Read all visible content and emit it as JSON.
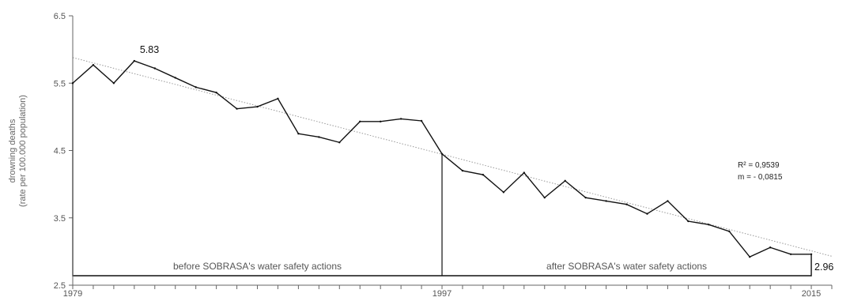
{
  "chart_data": {
    "type": "line",
    "title": "",
    "ylabel_lines": [
      "drowning deaths",
      "(rate per 100.000 population)"
    ],
    "xlabel": "",
    "ylim": [
      2.5,
      6.5
    ],
    "xlim": [
      1979,
      2016
    ],
    "y_ticks": [
      "2.5",
      "3.5",
      "4.5",
      "5.5",
      "6.5"
    ],
    "x_tick_labels": [
      {
        "year": 1979,
        "label": "1979"
      },
      {
        "year": 1997,
        "label": "1997"
      },
      {
        "year": 2015,
        "label": "2015"
      }
    ],
    "grid": false,
    "legend": "none",
    "colors": {
      "line": "#111111",
      "trend": "#999999",
      "axis": "#666666"
    },
    "series": [
      {
        "x": [
          1979,
          1980,
          1981,
          1982,
          1983,
          1984,
          1985,
          1986,
          1987,
          1988,
          1989,
          1990,
          1991,
          1992,
          1993,
          1994,
          1995,
          1996,
          1997,
          1998,
          1999,
          2000,
          2001,
          2002,
          2003,
          2004,
          2005,
          2006,
          2007,
          2008,
          2009,
          2010,
          2011,
          2012,
          2013,
          2014,
          2015
        ],
        "values": [
          5.5,
          5.77,
          5.5,
          5.83,
          5.72,
          5.58,
          5.44,
          5.36,
          5.12,
          5.15,
          5.27,
          4.75,
          4.7,
          4.62,
          4.93,
          4.93,
          4.97,
          4.94,
          4.45,
          4.2,
          4.14,
          3.88,
          4.17,
          3.8,
          4.05,
          3.8,
          3.75,
          3.7,
          3.56,
          3.75,
          3.45,
          3.4,
          3.3,
          2.92,
          3.06,
          2.96,
          2.96
        ]
      }
    ],
    "trendline": {
      "type": "linear",
      "x": [
        1979,
        2016
      ],
      "y": [
        5.88,
        2.93
      ]
    },
    "period_divider_year": 1997,
    "period_labels": {
      "before": "before SOBRASA's water safety actions",
      "after": "after SOBRASA's water safety actions"
    },
    "annotations": {
      "peak_label": "5.83",
      "end_label": "2.96"
    },
    "regression": {
      "r2": "R² = 0,9539",
      "slope": "m = - 0,0815"
    }
  }
}
